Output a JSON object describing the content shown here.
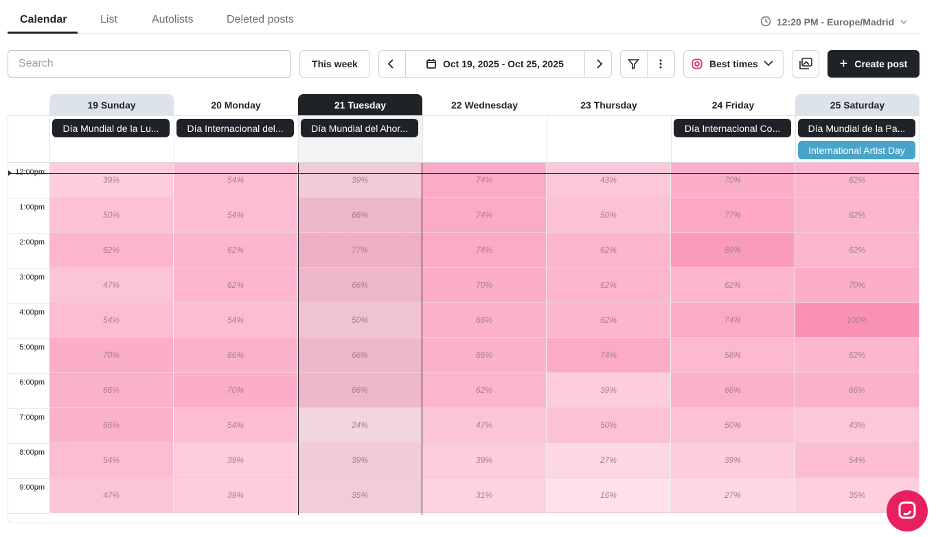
{
  "tabs": [
    "Calendar",
    "List",
    "Autolists",
    "Deleted posts"
  ],
  "timezone": "12:20 PM - Europe/Madrid",
  "toolbar": {
    "search_placeholder": "Search",
    "this_week": "This week",
    "date_range": "Oct 19, 2025 - Oct 25, 2025",
    "best_times": "Best times",
    "create_post": "Create post"
  },
  "days": [
    {
      "label": "19 Sunday",
      "events": [
        "Día Mundial de la Lu..."
      ]
    },
    {
      "label": "20 Monday",
      "events": [
        "Día Internacional del..."
      ]
    },
    {
      "label": "21 Tuesday",
      "events": [
        "Día Mundial del Ahor..."
      ]
    },
    {
      "label": "22 Wednesday",
      "events": []
    },
    {
      "label": "23 Thursday",
      "events": []
    },
    {
      "label": "24 Friday",
      "events": [
        "Día Internacional Co..."
      ]
    },
    {
      "label": "25 Saturday",
      "events": [
        "Día Mundial de la Pa...",
        "International Artist Day"
      ]
    }
  ],
  "hours": [
    "12:00pm",
    "1:00pm",
    "2:00pm",
    "3:00pm",
    "4:00pm",
    "5:00pm",
    "6:00pm",
    "7:00pm",
    "8:00pm",
    "9:00pm"
  ],
  "heatmap": [
    [
      "39%",
      "54%",
      "39%",
      "74%",
      "43%",
      "70%",
      "62%"
    ],
    [
      "50%",
      "54%",
      "66%",
      "74%",
      "50%",
      "77%",
      "62%"
    ],
    [
      "62%",
      "62%",
      "77%",
      "74%",
      "62%",
      "89%",
      "62%"
    ],
    [
      "47%",
      "62%",
      "66%",
      "70%",
      "62%",
      "62%",
      "70%"
    ],
    [
      "54%",
      "54%",
      "50%",
      "66%",
      "62%",
      "74%",
      "100%"
    ],
    [
      "70%",
      "66%",
      "66%",
      "66%",
      "74%",
      "58%",
      "62%"
    ],
    [
      "66%",
      "70%",
      "66%",
      "62%",
      "39%",
      "66%",
      "66%"
    ],
    [
      "66%",
      "54%",
      "24%",
      "47%",
      "50%",
      "50%",
      "43%"
    ],
    [
      "54%",
      "39%",
      "39%",
      "39%",
      "27%",
      "39%",
      "54%"
    ],
    [
      "47%",
      "39%",
      "35%",
      "31%",
      "16%",
      "27%",
      "35%"
    ]
  ]
}
